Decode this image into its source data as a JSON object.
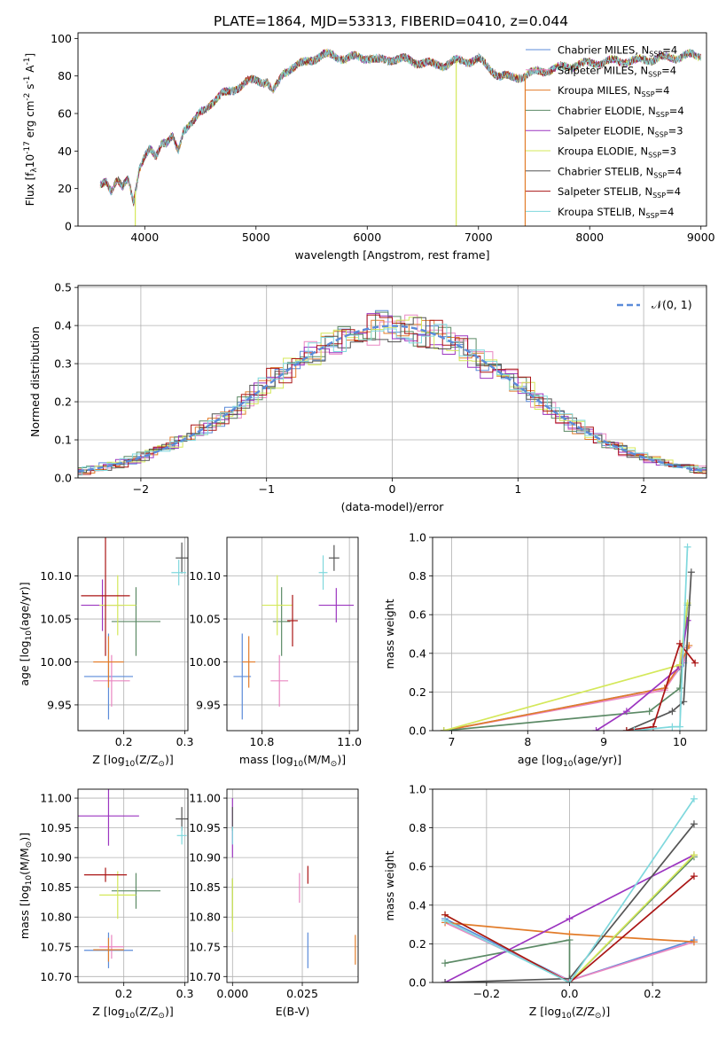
{
  "title": "PLATE=1864, MJD=53313, FIBERID=0410, z=0.044",
  "series": [
    {
      "label": "Chabrier MILES, N$_{SSP}$=4",
      "short": "Chabrier MILES, N",
      "sub": "SSP",
      "tail": "=4",
      "color": "#5b8bd9"
    },
    {
      "label": "Salpeter MILES",
      "short": "Salpeter MILES, N",
      "sub": "SSP",
      "tail": "=4",
      "color": "#e987c2"
    },
    {
      "label": "Kroupa MILES",
      "short": "Kroupa MILES, N",
      "sub": "SSP",
      "tail": "=4",
      "color": "#e27c2a"
    },
    {
      "label": "Chabrier ELODIE",
      "short": "Chabrier ELODIE, N",
      "sub": "SSP",
      "tail": "=4",
      "color": "#5c8a66"
    },
    {
      "label": "Salpeter ELODIE",
      "short": "Salpeter ELODIE, N",
      "sub": "SSP",
      "tail": "=3",
      "color": "#9c35c0"
    },
    {
      "label": "Kroupa ELODIE",
      "short": "Kroupa ELODIE, N",
      "sub": "SSP",
      "tail": "=3",
      "color": "#d4e85a"
    },
    {
      "label": "Chabrier STELIB",
      "short": "Chabrier STELIB, N",
      "sub": "SSP",
      "tail": "=4",
      "color": "#555555"
    },
    {
      "label": "Salpeter STELIB",
      "short": "Salpeter STELIB, N",
      "sub": "SSP",
      "tail": "=4",
      "color": "#aa1515"
    },
    {
      "label": "Kroupa STELIB",
      "short": "Kroupa STELIB, N",
      "sub": "SSP",
      "tail": "=4",
      "color": "#7fd8dd"
    }
  ],
  "chart_data": [
    {
      "type": "line",
      "name": "spectrum",
      "xlabel": "wavelength [Angstrom, rest frame]",
      "ylabel_main": "Flux [f",
      "ylabel_rest": "10",
      "ylabel_exp": "-17",
      "ylabel_unit": " erg cm",
      "ylabel_exp2": "-2",
      "ylabel_s": " s",
      "ylabel_exp3": "-1",
      "ylabel_A": " A",
      "ylabel_exp4": "-1",
      "ylabel_end": "]",
      "xlim": [
        3400,
        9050
      ],
      "ylim": [
        0,
        103
      ],
      "xticks": [
        4000,
        5000,
        6000,
        7000,
        8000,
        9000
      ],
      "yticks": [
        0,
        20,
        40,
        60,
        80,
        100
      ],
      "x": [
        3600,
        3650,
        3700,
        3750,
        3800,
        3850,
        3900,
        3950,
        4000,
        4050,
        4100,
        4150,
        4200,
        4250,
        4300,
        4350,
        4400,
        4450,
        4500,
        4600,
        4700,
        4800,
        4900,
        5000,
        5100,
        5150,
        5200,
        5250,
        5300,
        5400,
        5500,
        5600,
        5700,
        5800,
        5900,
        6000,
        6100,
        6200,
        6300,
        6400,
        6500,
        6600,
        6700,
        6800,
        6900,
        7000,
        7100,
        7200,
        7300,
        7400,
        7500,
        7600,
        7700,
        7800,
        7900,
        8000,
        8100,
        8200,
        8300,
        8400,
        8500,
        8600,
        8700,
        8800,
        8900
      ],
      "y": [
        22,
        25,
        19,
        24,
        20,
        26,
        14,
        30,
        36,
        41,
        38,
        45,
        44,
        47,
        40,
        52,
        54,
        56,
        60,
        66,
        70,
        73,
        76,
        78,
        77,
        71,
        76,
        82,
        84,
        86,
        89,
        91,
        91,
        89,
        90,
        90,
        88,
        89,
        89,
        88,
        87,
        86,
        86,
        88,
        88,
        89,
        84,
        80,
        79,
        80,
        82,
        83,
        84,
        85,
        86,
        87,
        87,
        88,
        88,
        88,
        89,
        89,
        90,
        90,
        91
      ],
      "drops": [
        {
          "x": 3915,
          "series": 5
        },
        {
          "x": 6800,
          "series": 5
        },
        {
          "x": 7420,
          "series": 2
        }
      ]
    },
    {
      "type": "histogram",
      "name": "residuals",
      "xlabel": "(data-model)/error",
      "ylabel": "Normed distribution",
      "legend": "𝒩(0, 1)",
      "xlim": [
        -2.5,
        2.5
      ],
      "ylim": [
        0,
        0.505
      ],
      "xticks": [
        -2,
        -1,
        0,
        1,
        2
      ],
      "xticklabels": [
        "−2",
        "−1",
        "0",
        "1",
        "2"
      ],
      "yticks": [
        0,
        0.1,
        0.2,
        0.3,
        0.4,
        0.5
      ],
      "yticklabels": [
        "0.0",
        "0.1",
        "0.2",
        "0.3",
        "0.4",
        "0.5"
      ],
      "bin_width": 0.1
    },
    {
      "type": "scatter",
      "name": "age-vs-Z",
      "xlabel": "Z [log",
      "xlabel_sub": "10",
      "xlabel_rest": "(Z/Z",
      "xlabel_end": ")]",
      "ylabel": "age  [log",
      "ylabel_sub": "10",
      "ylabel_rest": "(age/yr)]",
      "xlim": [
        0.125,
        0.305
      ],
      "ylim": [
        9.92,
        10.145
      ],
      "xticks": [
        0.2,
        0.3
      ],
      "yticks": [
        9.95,
        10.0,
        10.05,
        10.1
      ],
      "yticklabels": [
        "9.95",
        "10.00",
        "10.05",
        "10.10"
      ],
      "points": [
        {
          "s": 0,
          "x": 0.175,
          "xerr": 0.04,
          "y": 9.983,
          "yerr": 0.05
        },
        {
          "s": 1,
          "x": 0.18,
          "xerr": 0.03,
          "y": 9.978,
          "yerr": 0.03
        },
        {
          "s": 2,
          "x": 0.175,
          "xerr": 0.025,
          "y": 10.0,
          "yerr": 0.03
        },
        {
          "s": 3,
          "x": 0.22,
          "xerr": 0.04,
          "y": 10.047,
          "yerr": 0.04
        },
        {
          "s": 4,
          "x": 0.165,
          "xerr": 0.035,
          "y": 10.066,
          "yerr": 0.03
        },
        {
          "s": 5,
          "x": 0.19,
          "xerr": 0.03,
          "y": 10.066,
          "yerr": 0.035
        },
        {
          "s": 6,
          "x": 0.295,
          "xerr": 0.01,
          "y": 10.121,
          "yerr": 0.018
        },
        {
          "s": 7,
          "x": 0.17,
          "xerr": 0.04,
          "y": 10.077,
          "yerr": 0.07
        },
        {
          "s": 8,
          "x": 0.29,
          "xerr": 0.012,
          "y": 10.104,
          "yerr": 0.015
        }
      ]
    },
    {
      "type": "scatter",
      "name": "age-vs-mass",
      "xlabel": "mass [log",
      "xlabel_sub": "10",
      "xlabel_rest": "(M/M",
      "xlabel_end": ")]",
      "xlim": [
        10.72,
        11.02
      ],
      "ylim": [
        9.92,
        10.145
      ],
      "xticks": [
        10.8,
        11.0
      ],
      "xticklabels": [
        "10.8",
        "11.0"
      ],
      "yticks": [
        9.95,
        10.0,
        10.05,
        10.1
      ],
      "yticklabels": [
        "9.95",
        "10.00",
        "10.05",
        "10.10"
      ],
      "points": [
        {
          "s": 0,
          "x": 10.755,
          "xerr": 0.02,
          "y": 9.983,
          "yerr": 0.05
        },
        {
          "s": 1,
          "x": 10.84,
          "xerr": 0.02,
          "y": 9.978,
          "yerr": 0.03
        },
        {
          "s": 2,
          "x": 10.77,
          "xerr": 0.015,
          "y": 10.0,
          "yerr": 0.03
        },
        {
          "s": 3,
          "x": 10.845,
          "xerr": 0.02,
          "y": 10.047,
          "yerr": 0.04
        },
        {
          "s": 4,
          "x": 10.97,
          "xerr": 0.04,
          "y": 10.066,
          "yerr": 0.02
        },
        {
          "s": 5,
          "x": 10.835,
          "xerr": 0.035,
          "y": 10.066,
          "yerr": 0.035
        },
        {
          "s": 6,
          "x": 10.965,
          "xerr": 0.012,
          "y": 10.121,
          "yerr": 0.015
        },
        {
          "s": 7,
          "x": 10.87,
          "xerr": 0.012,
          "y": 10.048,
          "yerr": 0.03
        },
        {
          "s": 8,
          "x": 10.94,
          "xerr": 0.01,
          "y": 10.104,
          "yerr": 0.02
        }
      ]
    },
    {
      "type": "line",
      "name": "mass-weight-vs-age",
      "xlabel": "age  [log",
      "xlabel_sub": "10",
      "xlabel_rest": "(age/yr)]",
      "ylabel": "mass weight",
      "xlim": [
        6.75,
        10.35
      ],
      "ylim": [
        0,
        1.0
      ],
      "xticks": [
        7,
        8,
        9,
        10
      ],
      "yticks": [
        0,
        0.2,
        0.4,
        0.6,
        0.8,
        1.0
      ],
      "yticklabels": [
        "0.0",
        "0.2",
        "0.4",
        "0.6",
        "0.8",
        "1.0"
      ],
      "lines": [
        {
          "s": 0,
          "x": [
            6.9,
            9.8,
            10.05,
            10.1
          ],
          "y": [
            0.0,
            0.22,
            0.35,
            0.43
          ]
        },
        {
          "s": 1,
          "x": [
            6.9,
            9.8,
            10.05,
            10.1
          ],
          "y": [
            0.0,
            0.21,
            0.36,
            0.43
          ]
        },
        {
          "s": 2,
          "x": [
            6.9,
            9.8,
            10.0,
            10.12
          ],
          "y": [
            0.0,
            0.22,
            0.34,
            0.44
          ]
        },
        {
          "s": 3,
          "x": [
            6.9,
            9.6,
            10.0,
            10.1
          ],
          "y": [
            0.0,
            0.1,
            0.22,
            0.65
          ]
        },
        {
          "s": 4,
          "x": [
            8.9,
            9.3,
            10.0,
            10.1
          ],
          "y": [
            0.0,
            0.1,
            0.33,
            0.57
          ]
        },
        {
          "s": 5,
          "x": [
            6.9,
            10.0,
            10.1
          ],
          "y": [
            0.0,
            0.34,
            0.66
          ]
        },
        {
          "s": 6,
          "x": [
            9.3,
            9.9,
            10.05,
            10.15
          ],
          "y": [
            0.0,
            0.1,
            0.15,
            0.82
          ]
        },
        {
          "s": 7,
          "x": [
            9.3,
            9.65,
            10.0,
            10.2
          ],
          "y": [
            0.0,
            0.02,
            0.45,
            0.35
          ]
        },
        {
          "s": 8,
          "x": [
            9.4,
            9.9,
            10.0,
            10.1
          ],
          "y": [
            0.0,
            0.02,
            0.02,
            0.95
          ]
        }
      ]
    },
    {
      "type": "scatter",
      "name": "mass-vs-Z",
      "xlabel": "Z [log",
      "xlabel_sub": "10",
      "xlabel_rest": "(Z/Z",
      "xlabel_end": ")]",
      "ylabel": "mass [log",
      "ylabel_sub": "10",
      "ylabel_rest": "(M/M",
      "ylabel_end": ")]",
      "xlim": [
        0.125,
        0.305
      ],
      "ylim": [
        10.69,
        11.015
      ],
      "xticks": [
        0.2,
        0.3
      ],
      "yticks": [
        10.7,
        10.75,
        10.8,
        10.85,
        10.9,
        10.95,
        11.0
      ],
      "yticklabels": [
        "10.70",
        "10.75",
        "10.80",
        "10.85",
        "10.90",
        "10.95",
        "11.00"
      ],
      "points": [
        {
          "s": 0,
          "x": 0.175,
          "xerr": 0.04,
          "y": 10.744,
          "yerr": 0.03
        },
        {
          "s": 1,
          "x": 0.18,
          "xerr": 0.02,
          "y": 10.75,
          "yerr": 0.02
        },
        {
          "s": 2,
          "x": 0.175,
          "xerr": 0.025,
          "y": 10.745,
          "yerr": 0.02
        },
        {
          "s": 3,
          "x": 0.22,
          "xerr": 0.04,
          "y": 10.844,
          "yerr": 0.03
        },
        {
          "s": 4,
          "x": 0.175,
          "xerr": 0.05,
          "y": 10.97,
          "yerr": 0.05
        },
        {
          "s": 5,
          "x": 0.19,
          "xerr": 0.03,
          "y": 10.837,
          "yerr": 0.04
        },
        {
          "s": 6,
          "x": 0.295,
          "xerr": 0.01,
          "y": 10.965,
          "yerr": 0.02
        },
        {
          "s": 7,
          "x": 0.17,
          "xerr": 0.035,
          "y": 10.871,
          "yerr": 0.012
        },
        {
          "s": 8,
          "x": 0.295,
          "xerr": 0.008,
          "y": 10.937,
          "yerr": 0.015
        }
      ]
    },
    {
      "type": "scatter",
      "name": "mass-vs-EBV",
      "xlabel": "E(B-V)",
      "xlim": [
        -0.002,
        0.045
      ],
      "ylim": [
        10.69,
        11.015
      ],
      "xticks": [
        0.0,
        0.025
      ],
      "xticklabels": [
        "0.000",
        "0.025"
      ],
      "yticks": [
        10.7,
        10.75,
        10.8,
        10.85,
        10.9,
        10.95,
        11.0
      ],
      "yticklabels": [
        "10.70",
        "10.75",
        "10.80",
        "10.85",
        "10.90",
        "10.95",
        "11.00"
      ],
      "points": [
        {
          "s": 0,
          "x": 0.027,
          "xerr": 0,
          "y": 10.744,
          "yerr": 0.03
        },
        {
          "s": 1,
          "x": 0.024,
          "xerr": 0,
          "y": 10.849,
          "yerr": 0.025
        },
        {
          "s": 2,
          "x": 0.044,
          "xerr": 0,
          "y": 10.745,
          "yerr": 0.025
        },
        {
          "s": 3,
          "x": 0.0,
          "xerr": 0,
          "y": 10.83,
          "yerr": 0.035
        },
        {
          "s": 4,
          "x": 0.0,
          "xerr": 0,
          "y": 10.95,
          "yerr": 0.05
        },
        {
          "s": 5,
          "x": 0.0,
          "xerr": 0,
          "y": 10.82,
          "yerr": 0.045
        },
        {
          "s": 6,
          "x": 0.0,
          "xerr": 0,
          "y": 10.965,
          "yerr": 0.02
        },
        {
          "s": 7,
          "x": 0.027,
          "xerr": 0,
          "y": 10.871,
          "yerr": 0.015
        },
        {
          "s": 8,
          "x": 0.0,
          "xerr": 0,
          "y": 10.937,
          "yerr": 0.015
        }
      ]
    },
    {
      "type": "line",
      "name": "mass-weight-vs-Z",
      "xlabel": "Z [log",
      "xlabel_sub": "10",
      "xlabel_rest": "(Z/Z",
      "xlabel_end": ")]",
      "ylabel": "mass weight",
      "xlim": [
        -0.33,
        0.33
      ],
      "ylim": [
        0,
        1.0
      ],
      "xticks": [
        -0.2,
        0.0,
        0.2
      ],
      "xticklabels": [
        "−0.2",
        "0.0",
        "0.2"
      ],
      "yticks": [
        0,
        0.2,
        0.4,
        0.6,
        0.8,
        1.0
      ],
      "yticklabels": [
        "0.0",
        "0.2",
        "0.4",
        "0.6",
        "0.8",
        "1.0"
      ],
      "lines": [
        {
          "s": 0,
          "x": [
            -0.3,
            0.0,
            0.3
          ],
          "y": [
            0.33,
            0.01,
            0.22
          ]
        },
        {
          "s": 1,
          "x": [
            -0.3,
            0.0,
            0.3
          ],
          "y": [
            0.31,
            0.01,
            0.21
          ]
        },
        {
          "s": 2,
          "x": [
            -0.3,
            0.0,
            0.3
          ],
          "y": [
            0.31,
            0.25,
            0.21
          ]
        },
        {
          "s": 3,
          "x": [
            -0.3,
            0.0,
            0.0,
            0.3
          ],
          "y": [
            0.1,
            0.22,
            0.0,
            0.65
          ]
        },
        {
          "s": 4,
          "x": [
            -0.3,
            0.0,
            0.3
          ],
          "y": [
            0.0,
            0.33,
            0.66
          ]
        },
        {
          "s": 5,
          "x": [
            -0.3,
            0.0,
            0.3
          ],
          "y": [
            0.35,
            0.0,
            0.66
          ]
        },
        {
          "s": 6,
          "x": [
            -0.3,
            0.0,
            0.3
          ],
          "y": [
            0.0,
            0.02,
            0.82
          ]
        },
        {
          "s": 7,
          "x": [
            -0.3,
            0.0,
            0.3
          ],
          "y": [
            0.35,
            0.0,
            0.55
          ]
        },
        {
          "s": 8,
          "x": [
            -0.3,
            0.0,
            0.3
          ],
          "y": [
            0.32,
            0.0,
            0.95
          ]
        }
      ]
    }
  ]
}
